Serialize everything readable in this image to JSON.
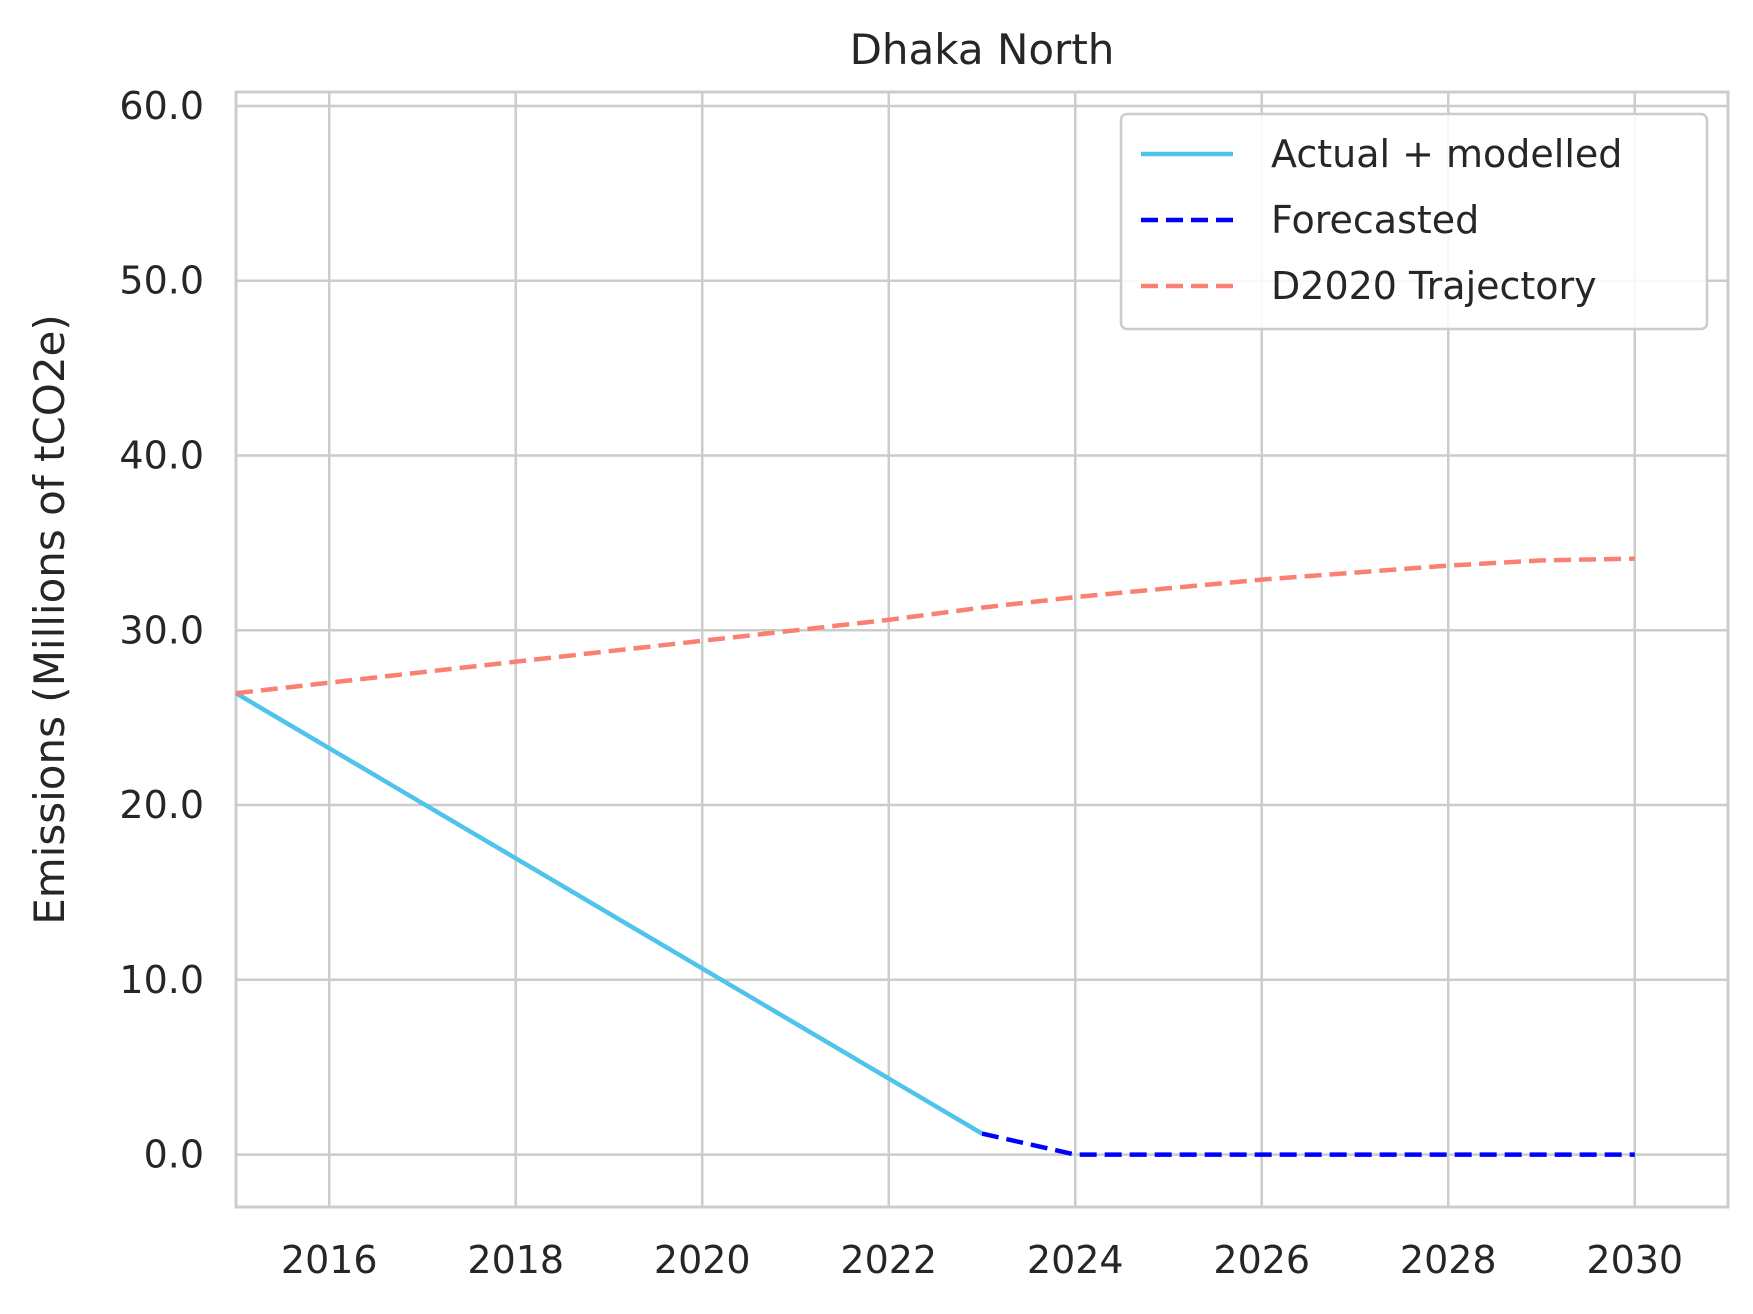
{
  "chart_data": {
    "type": "line",
    "title": "Dhaka North",
    "xlabel": "",
    "ylabel": "Emissions (Millions of tCO2e)",
    "xlim": [
      2015,
      2031
    ],
    "ylim": [
      -3,
      60.8
    ],
    "x_ticks": [
      2016,
      2018,
      2020,
      2022,
      2024,
      2026,
      2028,
      2030
    ],
    "x_tick_labels": [
      "2016",
      "2018",
      "2020",
      "2022",
      "2024",
      "2026",
      "2028",
      "2030"
    ],
    "y_ticks": [
      0,
      10,
      20,
      30,
      40,
      50,
      60
    ],
    "y_tick_labels": [
      "0.0",
      "10.0",
      "20.0",
      "30.0",
      "40.0",
      "50.0",
      "60.0"
    ],
    "grid": true,
    "legend_position": "top-right",
    "series": [
      {
        "name": "Actual + modelled",
        "color": "#4fc3ec",
        "style": "solid",
        "x": [
          2015,
          2023
        ],
        "y": [
          26.4,
          1.2
        ]
      },
      {
        "name": "Forecasted",
        "color": "#0000ff",
        "style": "dashed",
        "x": [
          2023,
          2024,
          2025,
          2026,
          2027,
          2028,
          2029,
          2030
        ],
        "y": [
          1.2,
          0.0,
          0.0,
          0.0,
          0.0,
          0.0,
          0.0,
          0.0
        ]
      },
      {
        "name": "D2020 Trajectory",
        "color": "#fa8072",
        "style": "dashed",
        "x": [
          2015,
          2016,
          2017,
          2018,
          2019,
          2020,
          2021,
          2022,
          2023,
          2024,
          2025,
          2026,
          2027,
          2028,
          2029,
          2030
        ],
        "y": [
          26.4,
          27.0,
          27.6,
          28.2,
          28.8,
          29.4,
          30.0,
          30.6,
          31.3,
          31.9,
          32.4,
          32.9,
          33.3,
          33.7,
          34.0,
          34.1
        ]
      }
    ]
  }
}
